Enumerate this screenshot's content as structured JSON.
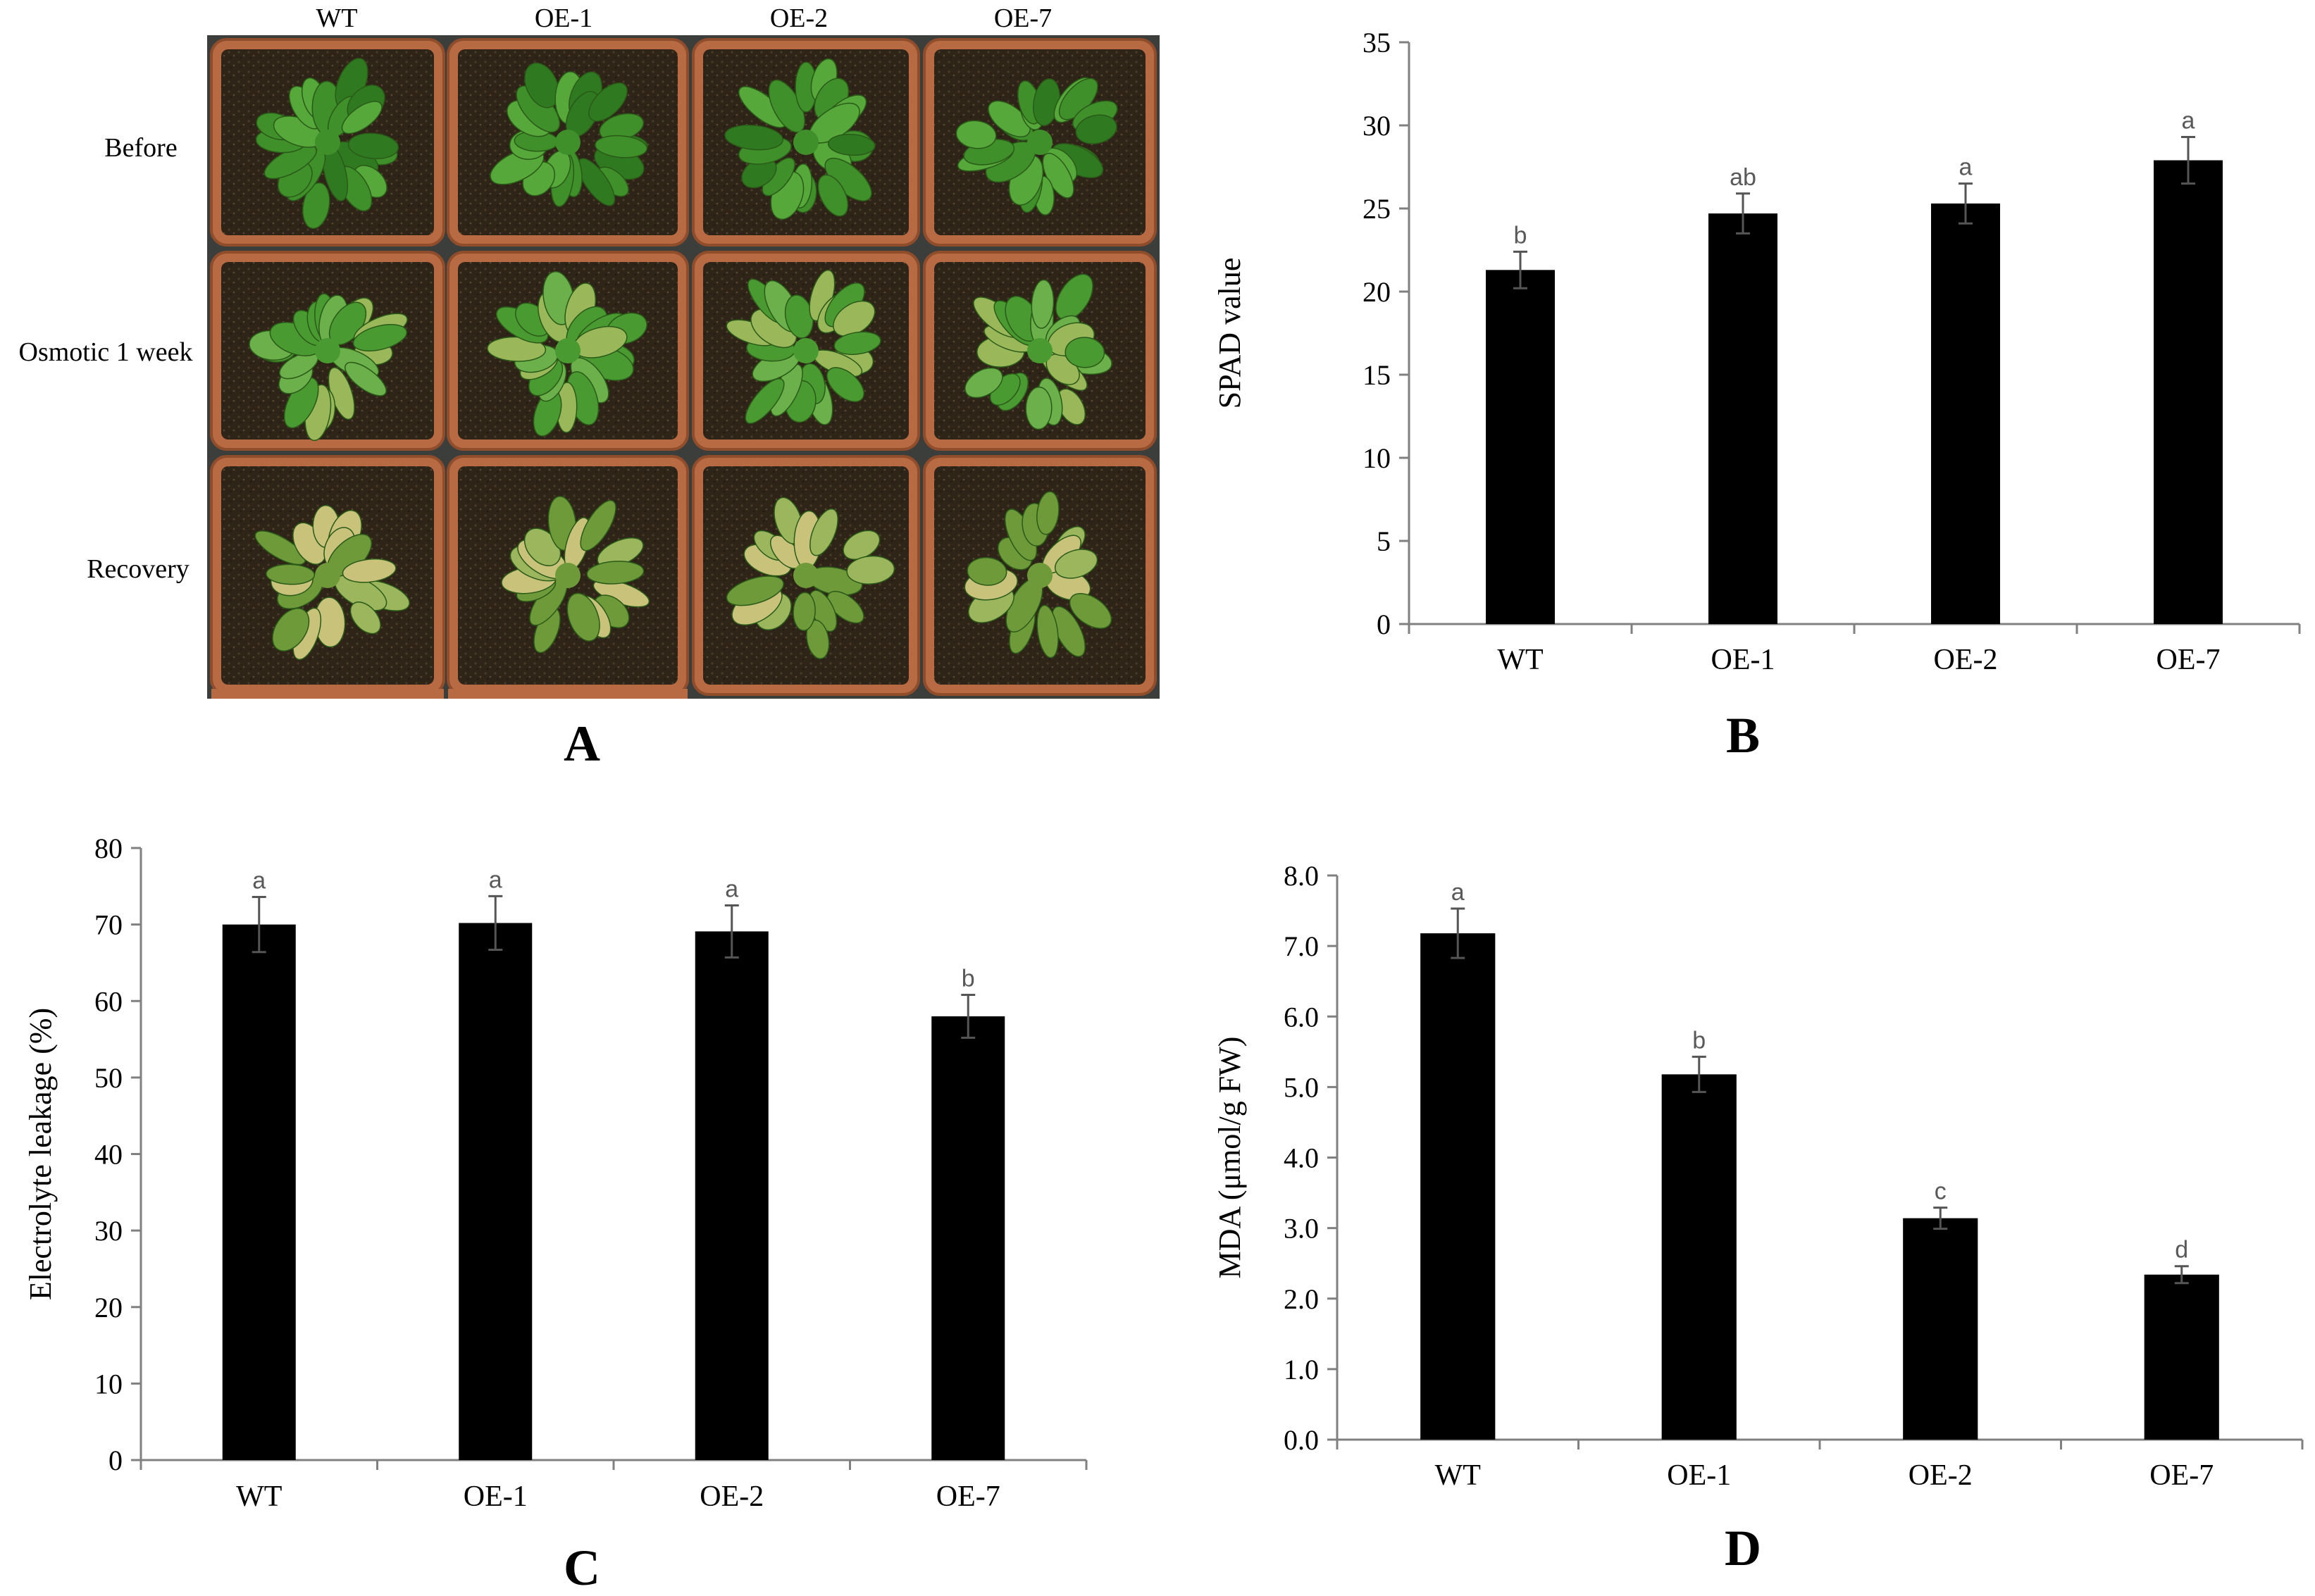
{
  "panel_a": {
    "letter": "A",
    "columns": [
      "WT",
      "OE-1",
      "OE-2",
      "OE-7"
    ],
    "rows": [
      "Before",
      "Osmotic 1 week",
      "Recovery"
    ]
  },
  "chart_data": [
    {
      "panel": "B",
      "type": "bar",
      "title": "",
      "xlabel": "",
      "ylabel": "SPAD value",
      "categories": [
        "WT",
        "OE-1",
        "OE-2",
        "OE-7"
      ],
      "values": [
        21.3,
        24.7,
        25.3,
        27.9
      ],
      "errors": [
        1.1,
        1.2,
        1.2,
        1.4
      ],
      "significance": [
        "b",
        "ab",
        "a",
        "a"
      ],
      "ylim": [
        0,
        35
      ],
      "yticks": [
        0,
        5,
        10,
        15,
        20,
        25,
        30,
        35
      ],
      "ytick_labels": [
        "0",
        "5",
        "10",
        "15",
        "20",
        "25",
        "30",
        "35"
      ],
      "grid": false,
      "bar_color": "#000000"
    },
    {
      "panel": "C",
      "type": "bar",
      "title": "",
      "xlabel": "",
      "ylabel": "Electrolyte leakage (%)",
      "categories": [
        "WT",
        "OE-1",
        "OE-2",
        "OE-7"
      ],
      "values": [
        70.0,
        70.2,
        69.1,
        58.0
      ],
      "errors": [
        3.6,
        3.5,
        3.4,
        2.8
      ],
      "significance": [
        "a",
        "a",
        "a",
        "b"
      ],
      "ylim": [
        0,
        80
      ],
      "yticks": [
        0,
        10,
        20,
        30,
        40,
        50,
        60,
        70,
        80
      ],
      "ytick_labels": [
        "0",
        "10",
        "20",
        "30",
        "40",
        "50",
        "60",
        "70",
        "80"
      ],
      "grid": false,
      "bar_color": "#000000"
    },
    {
      "panel": "D",
      "type": "bar",
      "title": "",
      "xlabel": "",
      "ylabel": "MDA (μmol/g FW)",
      "categories": [
        "WT",
        "OE-1",
        "OE-2",
        "OE-7"
      ],
      "values": [
        7.18,
        5.18,
        3.14,
        2.34
      ],
      "errors": [
        0.35,
        0.25,
        0.15,
        0.12
      ],
      "significance": [
        "a",
        "b",
        "c",
        "d"
      ],
      "ylim": [
        0,
        8
      ],
      "yticks": [
        0,
        1,
        2,
        3,
        4,
        5,
        6,
        7,
        8
      ],
      "ytick_labels": [
        "0.0",
        "1.0",
        "2.0",
        "3.0",
        "4.0",
        "5.0",
        "6.0",
        "7.0",
        "8.0"
      ],
      "grid": false,
      "bar_color": "#000000"
    }
  ]
}
